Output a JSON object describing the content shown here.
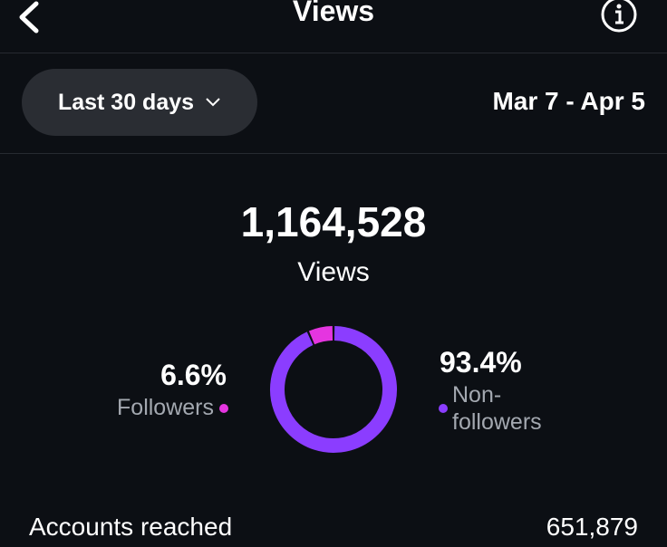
{
  "header": {
    "title": "Views"
  },
  "filter": {
    "period": "Last 30 days",
    "date_range": "Mar 7 - Apr 5"
  },
  "summary": {
    "total": "1,164,528",
    "label": "Views"
  },
  "chart_data": {
    "type": "donut",
    "categories": [
      "Followers",
      "Non-followers"
    ],
    "values": [
      6.6,
      93.4
    ],
    "value_labels": [
      "6.6%",
      "93.4%"
    ],
    "colors": [
      "#e535e0",
      "#8b3dff"
    ]
  },
  "metrics": [
    {
      "label": "Accounts reached",
      "value": "651,879"
    }
  ]
}
